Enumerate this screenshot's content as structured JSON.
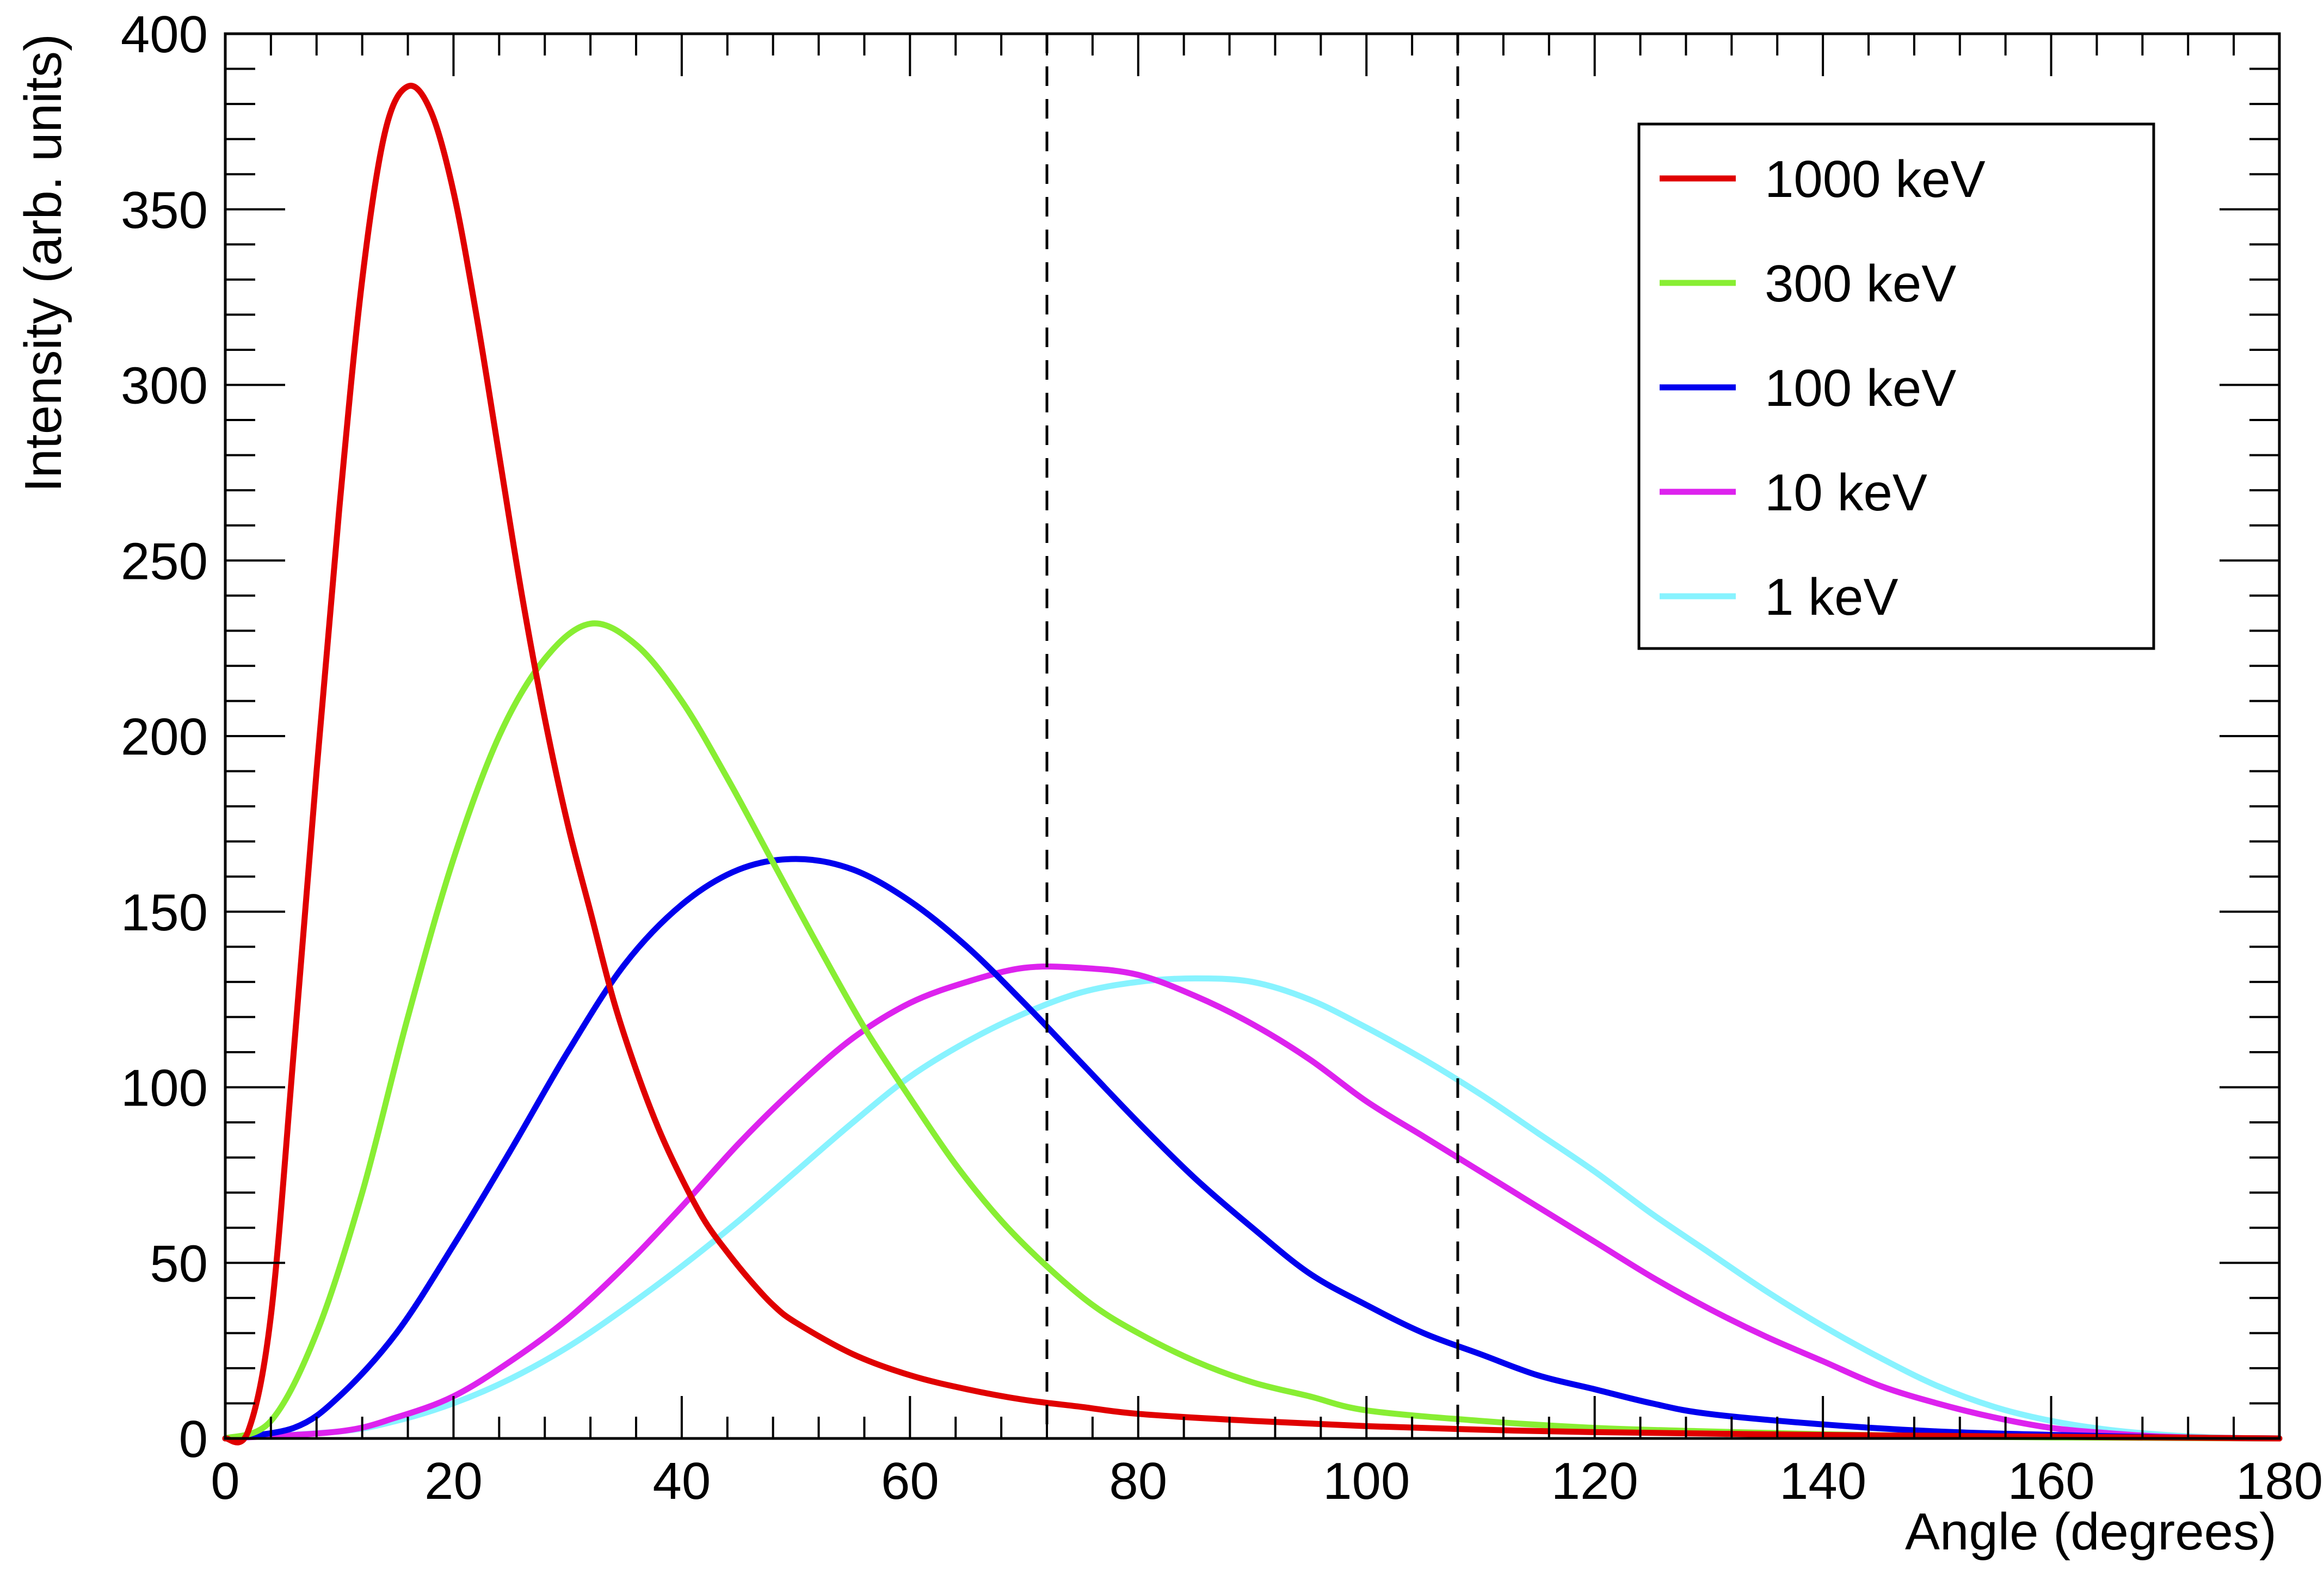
{
  "chart_data": {
    "type": "line",
    "title": "",
    "xlabel": "Angle (degrees)",
    "ylabel": "Intensity (arb. units)",
    "xlim": [
      0,
      180
    ],
    "ylim": [
      0,
      400
    ],
    "x_major_ticks": [
      0,
      20,
      40,
      60,
      80,
      100,
      120,
      140,
      160,
      180
    ],
    "x_tick_labels": [
      "0",
      "20",
      "40",
      "60",
      "80",
      "100",
      "120",
      "140",
      "160",
      "180"
    ],
    "y_major_ticks": [
      0,
      50,
      100,
      150,
      200,
      250,
      300,
      350,
      400
    ],
    "y_tick_labels": [
      "0",
      "50",
      "100",
      "150",
      "200",
      "250",
      "300",
      "350",
      "400"
    ],
    "x_minor_step": 4,
    "y_minor_step": 10,
    "grid": false,
    "legend_position": "top-right",
    "reference_lines_x": [
      72,
      108
    ],
    "series": [
      {
        "name": "1000 keV",
        "color": "#e00000",
        "points": [
          [
            0,
            0
          ],
          [
            2,
            2
          ],
          [
            4,
            35
          ],
          [
            6,
            110
          ],
          [
            8,
            190
          ],
          [
            10,
            265
          ],
          [
            12,
            330
          ],
          [
            14,
            372
          ],
          [
            16,
            385
          ],
          [
            18,
            378
          ],
          [
            20,
            355
          ],
          [
            22,
            320
          ],
          [
            24,
            280
          ],
          [
            26,
            240
          ],
          [
            28,
            205
          ],
          [
            30,
            175
          ],
          [
            32,
            150
          ],
          [
            34,
            125
          ],
          [
            36,
            105
          ],
          [
            38,
            88
          ],
          [
            40,
            74
          ],
          [
            42,
            62
          ],
          [
            44,
            53
          ],
          [
            46,
            45
          ],
          [
            48,
            38
          ],
          [
            50,
            33
          ],
          [
            55,
            24
          ],
          [
            60,
            18
          ],
          [
            65,
            14
          ],
          [
            70,
            11
          ],
          [
            75,
            9
          ],
          [
            80,
            7
          ],
          [
            90,
            5
          ],
          [
            100,
            3.5
          ],
          [
            110,
            2.5
          ],
          [
            120,
            1.8
          ],
          [
            140,
            1
          ],
          [
            160,
            0.5
          ],
          [
            180,
            0
          ]
        ]
      },
      {
        "name": "300 keV",
        "color": "#88ee33",
        "points": [
          [
            0,
            0
          ],
          [
            4,
            5
          ],
          [
            8,
            30
          ],
          [
            12,
            70
          ],
          [
            16,
            120
          ],
          [
            20,
            165
          ],
          [
            24,
            200
          ],
          [
            28,
            222
          ],
          [
            32,
            232
          ],
          [
            36,
            226
          ],
          [
            40,
            210
          ],
          [
            44,
            188
          ],
          [
            48,
            164
          ],
          [
            52,
            140
          ],
          [
            56,
            117
          ],
          [
            60,
            97
          ],
          [
            64,
            78
          ],
          [
            68,
            62
          ],
          [
            72,
            49
          ],
          [
            76,
            38
          ],
          [
            80,
            30
          ],
          [
            85,
            22
          ],
          [
            90,
            16
          ],
          [
            95,
            12
          ],
          [
            100,
            8
          ],
          [
            110,
            5
          ],
          [
            120,
            3
          ],
          [
            130,
            2
          ],
          [
            140,
            1.2
          ],
          [
            150,
            0.6
          ],
          [
            160,
            0.3
          ],
          [
            180,
            0
          ]
        ]
      },
      {
        "name": "100 keV",
        "color": "#0000ee",
        "points": [
          [
            0,
            0
          ],
          [
            6,
            3
          ],
          [
            10,
            12
          ],
          [
            15,
            30
          ],
          [
            20,
            55
          ],
          [
            25,
            82
          ],
          [
            30,
            110
          ],
          [
            35,
            135
          ],
          [
            40,
            152
          ],
          [
            45,
            162
          ],
          [
            50,
            165
          ],
          [
            55,
            162
          ],
          [
            60,
            153
          ],
          [
            65,
            140
          ],
          [
            70,
            124
          ],
          [
            75,
            107
          ],
          [
            80,
            90
          ],
          [
            85,
            74
          ],
          [
            90,
            60
          ],
          [
            95,
            47
          ],
          [
            100,
            38
          ],
          [
            105,
            30
          ],
          [
            110,
            24
          ],
          [
            115,
            18
          ],
          [
            120,
            14
          ],
          [
            125,
            10
          ],
          [
            130,
            7
          ],
          [
            140,
            4
          ],
          [
            150,
            2
          ],
          [
            160,
            1
          ],
          [
            170,
            0.3
          ],
          [
            180,
            0
          ]
        ]
      },
      {
        "name": "10 keV",
        "color": "#dd22ee",
        "points": [
          [
            0,
            0
          ],
          [
            10,
            2
          ],
          [
            15,
            6
          ],
          [
            20,
            12
          ],
          [
            25,
            22
          ],
          [
            30,
            34
          ],
          [
            35,
            49
          ],
          [
            40,
            66
          ],
          [
            45,
            84
          ],
          [
            50,
            100
          ],
          [
            55,
            114
          ],
          [
            60,
            124
          ],
          [
            65,
            130
          ],
          [
            70,
            134
          ],
          [
            75,
            134
          ],
          [
            80,
            132
          ],
          [
            85,
            126
          ],
          [
            90,
            118
          ],
          [
            95,
            108
          ],
          [
            100,
            96
          ],
          [
            105,
            86
          ],
          [
            110,
            76
          ],
          [
            115,
            66
          ],
          [
            120,
            56
          ],
          [
            125,
            46
          ],
          [
            130,
            37
          ],
          [
            135,
            29
          ],
          [
            140,
            22
          ],
          [
            145,
            15
          ],
          [
            150,
            10
          ],
          [
            155,
            6
          ],
          [
            160,
            3
          ],
          [
            165,
            1.5
          ],
          [
            170,
            0.5
          ],
          [
            175,
            0.1
          ],
          [
            180,
            0
          ]
        ]
      },
      {
        "name": "1 keV",
        "color": "#88f3ff",
        "points": [
          [
            0,
            0
          ],
          [
            10,
            2
          ],
          [
            15,
            5
          ],
          [
            20,
            10
          ],
          [
            25,
            17
          ],
          [
            30,
            26
          ],
          [
            35,
            37
          ],
          [
            40,
            49
          ],
          [
            45,
            62
          ],
          [
            50,
            76
          ],
          [
            55,
            90
          ],
          [
            60,
            103
          ],
          [
            65,
            113
          ],
          [
            70,
            121
          ],
          [
            75,
            127
          ],
          [
            80,
            130
          ],
          [
            85,
            131
          ],
          [
            90,
            130
          ],
          [
            95,
            125
          ],
          [
            100,
            117
          ],
          [
            105,
            108
          ],
          [
            110,
            98
          ],
          [
            115,
            87
          ],
          [
            120,
            76
          ],
          [
            125,
            64
          ],
          [
            130,
            53
          ],
          [
            135,
            42
          ],
          [
            140,
            32
          ],
          [
            145,
            23
          ],
          [
            150,
            15
          ],
          [
            155,
            9
          ],
          [
            160,
            5
          ],
          [
            165,
            2.5
          ],
          [
            170,
            1
          ],
          [
            175,
            0.2
          ],
          [
            180,
            0
          ]
        ]
      }
    ]
  },
  "colors": {
    "reference_line": "#000000",
    "frame": "#000000"
  }
}
